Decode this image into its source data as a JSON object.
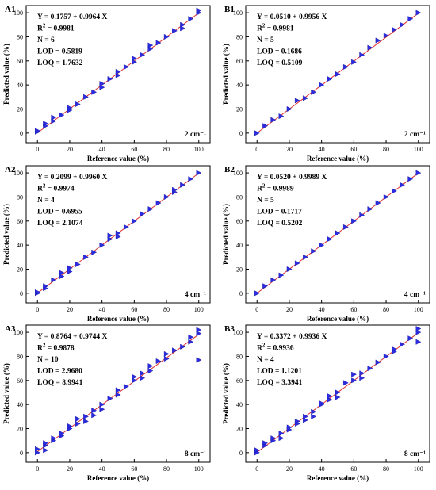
{
  "figure": {
    "colors": {
      "point": "#2b2be0",
      "line": "#e03030",
      "axis": "#000000"
    }
  },
  "chart_data": [
    {
      "type": "scatter",
      "panel": "A1",
      "xlabel": "Reference value (%)",
      "ylabel": "Predicted value (%)",
      "xlim": [
        -7,
        107
      ],
      "ylim": [
        -8,
        106
      ],
      "xticks": [
        "0",
        "20",
        "40",
        "60",
        "80",
        "100"
      ],
      "yticks": [
        "0",
        "20",
        "40",
        "60",
        "80",
        "100"
      ],
      "grid": false,
      "legend": "none",
      "stats": [
        "Y = 0.1757 + 0.9964 X",
        "R2 = 0.9981",
        "N = 6",
        "LOD = 0.5819",
        "LOQ = 1.7632"
      ],
      "resolution": "2 cm⁻¹",
      "fit": {
        "intercept": 0.1757,
        "slope": 0.9964
      },
      "points": {
        "x": [
          0,
          0,
          5,
          5,
          10,
          10,
          15,
          20,
          20,
          25,
          30,
          35,
          40,
          40,
          45,
          50,
          50,
          55,
          60,
          60,
          65,
          70,
          70,
          75,
          80,
          85,
          90,
          90,
          95,
          100,
          100
        ],
        "y": [
          1,
          2,
          6,
          8,
          10,
          13,
          15,
          19,
          21,
          24,
          30,
          34,
          38,
          41,
          45,
          48,
          51,
          55,
          59,
          62,
          65,
          70,
          73,
          75,
          80,
          85,
          87,
          90,
          95,
          100,
          102
        ]
      }
    },
    {
      "type": "scatter",
      "panel": "B1",
      "xlabel": "Reference value (%)",
      "ylabel": "Predicted value (%)",
      "xlim": [
        -7,
        107
      ],
      "ylim": [
        -8,
        106
      ],
      "xticks": [
        "0",
        "20",
        "40",
        "60",
        "80",
        "100"
      ],
      "yticks": [
        "0",
        "20",
        "40",
        "60",
        "80",
        "100"
      ],
      "grid": false,
      "legend": "none",
      "stats": [
        "Y = 0.0510 + 0.9956 X",
        "R2 = 0.9981",
        "N = 5",
        "LOD = 0.1686",
        "LOQ = 0.5109"
      ],
      "resolution": "2 cm⁻¹",
      "fit": {
        "intercept": 0.051,
        "slope": 0.9956
      },
      "points": {
        "x": [
          0,
          5,
          10,
          15,
          20,
          25,
          30,
          35,
          40,
          45,
          50,
          55,
          60,
          65,
          70,
          75,
          80,
          85,
          90,
          95,
          100
        ],
        "y": [
          0,
          6,
          11,
          14,
          20,
          27,
          29,
          34,
          40,
          45,
          49,
          55,
          59,
          65,
          71,
          77,
          81,
          86,
          90,
          95,
          100
        ]
      }
    },
    {
      "type": "scatter",
      "panel": "A2",
      "xlabel": "Reference value (%)",
      "ylabel": "Predicted value (%)",
      "xlim": [
        -7,
        107
      ],
      "ylim": [
        -8,
        106
      ],
      "xticks": [
        "0",
        "20",
        "40",
        "60",
        "80",
        "100"
      ],
      "yticks": [
        "0",
        "20",
        "40",
        "60",
        "80",
        "100"
      ],
      "grid": false,
      "legend": "none",
      "stats": [
        "Y = 0.2099 + 0.9960 X",
        "R2 = 0.9974",
        "N = 4",
        "LOD = 0.6955",
        "LOQ = 2.1074"
      ],
      "resolution": "4 cm⁻¹",
      "fit": {
        "intercept": 0.2099,
        "slope": 0.996
      },
      "points": {
        "x": [
          0,
          0,
          5,
          5,
          10,
          15,
          15,
          20,
          20,
          25,
          30,
          35,
          40,
          45,
          45,
          50,
          50,
          55,
          60,
          65,
          70,
          75,
          80,
          85,
          85,
          90,
          95,
          100
        ],
        "y": [
          0,
          1,
          4,
          6,
          11,
          14,
          17,
          18,
          21,
          24,
          30,
          34,
          40,
          45,
          48,
          47,
          50,
          55,
          60,
          66,
          70,
          75,
          80,
          84,
          86,
          90,
          95,
          100
        ]
      }
    },
    {
      "type": "scatter",
      "panel": "B2",
      "xlabel": "Reference value (%)",
      "ylabel": "Predicted value (%)",
      "xlim": [
        -7,
        107
      ],
      "ylim": [
        -8,
        106
      ],
      "xticks": [
        "0",
        "20",
        "40",
        "60",
        "80",
        "100"
      ],
      "yticks": [
        "0",
        "20",
        "40",
        "60",
        "80",
        "100"
      ],
      "grid": false,
      "legend": "none",
      "stats": [
        "Y = 0.0520 + 0.9989 X",
        "R2 = 0.9989",
        "N = 5",
        "LOD = 0.1717",
        "LOQ = 0.5202"
      ],
      "resolution": "4 cm⁻¹",
      "fit": {
        "intercept": 0.052,
        "slope": 0.9989
      },
      "points": {
        "x": [
          0,
          5,
          10,
          15,
          20,
          25,
          30,
          35,
          40,
          45,
          50,
          55,
          60,
          65,
          70,
          75,
          80,
          85,
          90,
          95,
          100
        ],
        "y": [
          0,
          6,
          11,
          15,
          20,
          25,
          30,
          35,
          40,
          45,
          50,
          55,
          60,
          65,
          70,
          75,
          80,
          85,
          90,
          95,
          100
        ]
      }
    },
    {
      "type": "scatter",
      "panel": "A3",
      "xlabel": "Reference value (%)",
      "ylabel": "Predicted value (%)",
      "xlim": [
        -7,
        107
      ],
      "ylim": [
        -8,
        106
      ],
      "xticks": [
        "0",
        "20",
        "40",
        "60",
        "80",
        "100"
      ],
      "yticks": [
        "0",
        "20",
        "40",
        "60",
        "80",
        "100"
      ],
      "grid": false,
      "legend": "none",
      "stats": [
        "Y = 0.8764 + 0.9744 X",
        "R2 = 0.9878",
        "N = 10",
        "LOD = 2.9680",
        "LOQ = 8.9941"
      ],
      "resolution": "8 cm⁻¹",
      "fit": {
        "intercept": 0.8764,
        "slope": 0.9744
      },
      "points": {
        "x": [
          0,
          0,
          5,
          5,
          5,
          10,
          10,
          15,
          15,
          20,
          20,
          25,
          25,
          30,
          30,
          35,
          35,
          40,
          40,
          45,
          50,
          50,
          55,
          60,
          60,
          65,
          65,
          70,
          70,
          75,
          80,
          80,
          85,
          90,
          95,
          95,
          100,
          100,
          100
        ],
        "y": [
          0,
          3,
          2,
          6,
          8,
          10,
          12,
          14,
          16,
          20,
          22,
          24,
          28,
          26,
          30,
          31,
          35,
          36,
          40,
          45,
          48,
          52,
          55,
          60,
          63,
          62,
          66,
          68,
          72,
          76,
          78,
          82,
          85,
          88,
          92,
          96,
          99,
          102,
          77
        ]
      }
    },
    {
      "type": "scatter",
      "panel": "B3",
      "xlabel": "Reference value (%)",
      "ylabel": "Predicted value (%)",
      "xlim": [
        -7,
        107
      ],
      "ylim": [
        -8,
        106
      ],
      "xticks": [
        "0",
        "20",
        "40",
        "60",
        "80",
        "100"
      ],
      "yticks": [
        "0",
        "20",
        "40",
        "60",
        "80",
        "100"
      ],
      "grid": false,
      "legend": "none",
      "stats": [
        "Y = 0.3372 + 0.9936 X",
        "R2 = 0.9936",
        "N = 4",
        "LOD = 1.1201",
        "LOQ = 3.3941"
      ],
      "resolution": "8 cm⁻¹",
      "fit": {
        "intercept": 0.3372,
        "slope": 0.9936
      },
      "points": {
        "x": [
          0,
          0,
          5,
          5,
          10,
          10,
          15,
          15,
          20,
          20,
          25,
          25,
          30,
          30,
          35,
          35,
          40,
          40,
          45,
          45,
          50,
          50,
          55,
          60,
          60,
          65,
          65,
          70,
          75,
          80,
          85,
          85,
          90,
          95,
          100,
          100,
          100
        ],
        "y": [
          0,
          2,
          6,
          8,
          10,
          12,
          12,
          16,
          19,
          21,
          24,
          26,
          27,
          30,
          30,
          34,
          40,
          41,
          44,
          47,
          46,
          50,
          58,
          60,
          65,
          62,
          66,
          70,
          75,
          80,
          84,
          86,
          90,
          95,
          100,
          103,
          92
        ]
      }
    }
  ]
}
